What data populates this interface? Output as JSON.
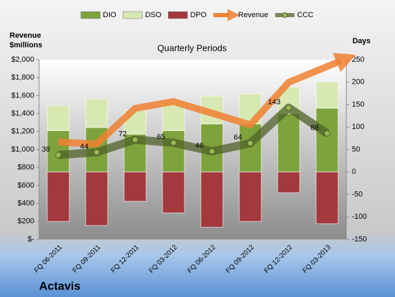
{
  "chart_data": {
    "type": "bar",
    "company": "Actavis",
    "title": "Quarterly Periods",
    "ylabel": [
      "Revenue",
      "$millions"
    ],
    "y2label": "Days",
    "categories": [
      "FQ 06-2011",
      "FQ 09-2011",
      "FQ 12-2011",
      "FQ 03-2012",
      "FQ 06-2012",
      "FQ 09-2012",
      "FQ 12-2012",
      "FQ 03-2013"
    ],
    "series": [
      {
        "name": "DIO",
        "type": "bar",
        "axis": "y2",
        "color": "#7fa33c",
        "values": [
          92,
          99,
          84,
          92,
          107,
          107,
          130,
          142
        ]
      },
      {
        "name": "DSO",
        "type": "bar",
        "axis": "y2",
        "color": "#d8e8b2",
        "values": [
          56,
          64,
          53,
          64,
          62,
          67,
          59,
          59
        ]
      },
      {
        "name": "DPO",
        "type": "bar",
        "axis": "y2",
        "color": "#a3383d",
        "values": [
          -110,
          -119,
          -65,
          -91,
          -123,
          -110,
          -46,
          -115
        ]
      },
      {
        "name": "Revenue",
        "type": "line",
        "color": "#f08030",
        "values": [
          1084,
          1061,
          1458,
          1534,
          1405,
          1275,
          1748,
          1924
        ]
      },
      {
        "name": "CCC",
        "type": "line",
        "axis": "y2",
        "color": "#4f6228",
        "values": [
          38,
          44,
          72,
          65,
          46,
          64,
          143,
          86
        ]
      }
    ],
    "ylim": [
      0,
      2000
    ],
    "yticks": [
      {
        "value": 0,
        "label": "$-"
      },
      {
        "value": 200,
        "label": "$200"
      },
      {
        "value": 400,
        "label": "$400"
      },
      {
        "value": 600,
        "label": "$600"
      },
      {
        "value": 800,
        "label": "$800"
      },
      {
        "value": 1000,
        "label": "$1,000"
      },
      {
        "value": 1200,
        "label": "$1,200"
      },
      {
        "value": 1400,
        "label": "$1,400"
      },
      {
        "value": 1600,
        "label": "$1,600"
      },
      {
        "value": 1800,
        "label": "$1,800"
      },
      {
        "value": 2000,
        "label": "$2,000"
      }
    ],
    "y2lim": [
      -150,
      250
    ],
    "y2ticks": [
      -150,
      -100,
      -50,
      0,
      50,
      100,
      150,
      200,
      250
    ],
    "grid": false,
    "legend": "top"
  }
}
